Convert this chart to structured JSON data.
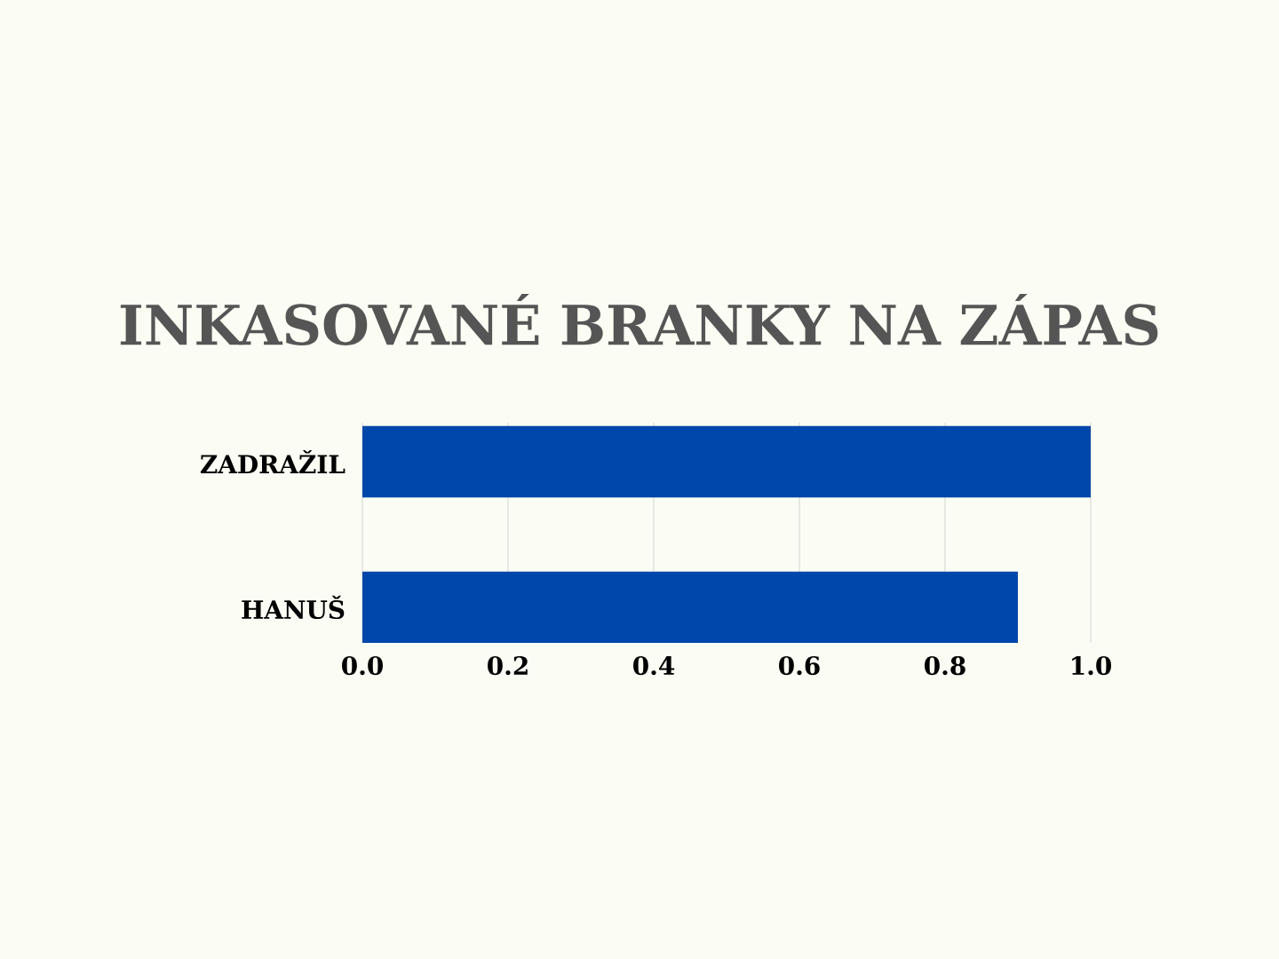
{
  "chart_data": {
    "type": "bar",
    "orientation": "horizontal",
    "title": "INKASOVANÉ BRANKY NA ZÁPAS",
    "categories": [
      "ZADRAŽIL",
      "HANUŠ"
    ],
    "values": [
      1.0,
      0.9
    ],
    "color": "#0047ab",
    "xlim": [
      0,
      1.0
    ],
    "xticks": [
      {
        "value": 0,
        "label": "0.0"
      },
      {
        "value": 0.2,
        "label": "0.2"
      },
      {
        "value": 0.4,
        "label": "0.4"
      },
      {
        "value": 0.6,
        "label": "0.6"
      },
      {
        "value": 0.8,
        "label": "0.8"
      },
      {
        "value": 1.0,
        "label": "1.0"
      }
    ],
    "grid": "x"
  }
}
